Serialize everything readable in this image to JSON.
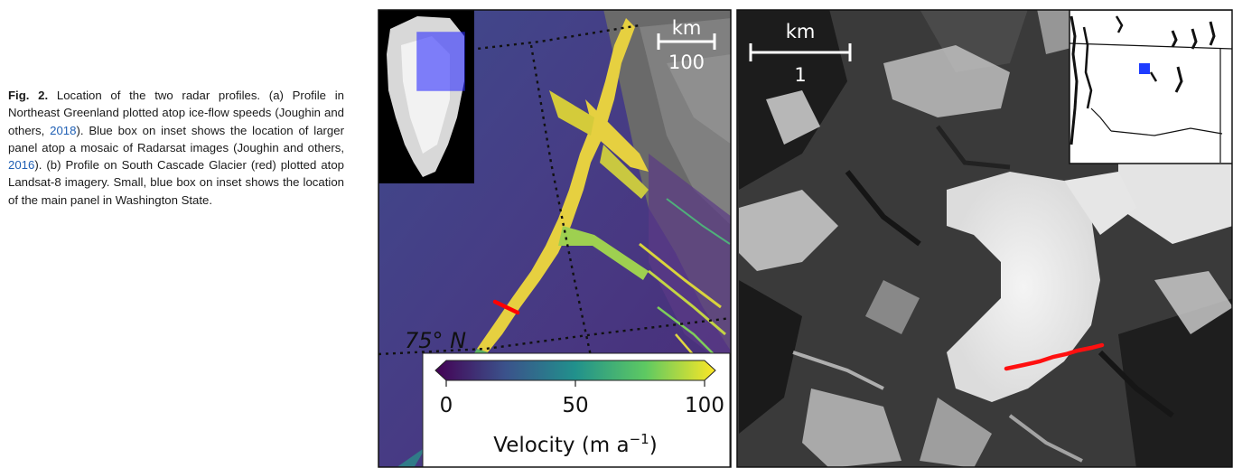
{
  "caption": {
    "label": "Fig. 2.",
    "t1": " Location of the two radar profiles. (a) Profile in Northeast Greenland plotted atop ice-flow speeds (Joughin and others, ",
    "y1": "2018",
    "t2": "). Blue box on inset shows the location of larger panel atop a mosaic of Radarsat images (Joughin and others, ",
    "y2": "2016",
    "t3": "). (b) Profile on South Cascade Glacier (red) plotted atop Landsat-8 imagery. Small, blue box on inset shows the location of the main panel in Washington State."
  },
  "panel_a": {
    "scale_unit": "km",
    "scale_value": "100",
    "lat_label": "75° N",
    "colorbar": {
      "ticks": [
        "0",
        "50",
        "100"
      ],
      "label": "Velocity (m a",
      "label_sup": "−1",
      "label_close": ")",
      "colors": [
        "#440154",
        "#3b528b",
        "#21918c",
        "#5ec962",
        "#fde725"
      ]
    },
    "profile_color": "#ff0000",
    "inset_box_color": "#2a2aff"
  },
  "panel_b": {
    "scale_unit": "km",
    "scale_value": "1",
    "profile_color": "#ff1010",
    "inset_marker_color": "#1e3cff"
  }
}
